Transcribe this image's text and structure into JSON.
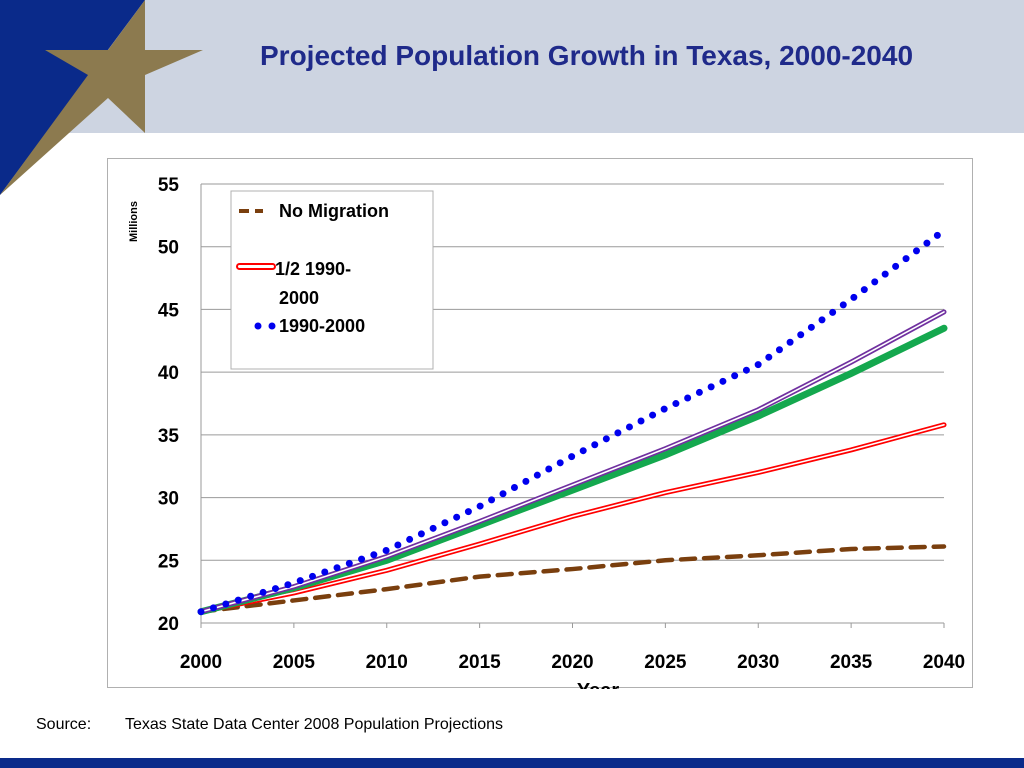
{
  "slide": {
    "title": "Projected Population Growth in Texas, 2000-2040",
    "source_label": "Source:",
    "source_text": "Texas State Data Center 2008 Population Projections",
    "colors": {
      "header_bg": "#cdd4e1",
      "navy": "#0a2a8a",
      "star_gold": "#8c7a4f",
      "title": "#1f2a8a"
    }
  },
  "chart_data": {
    "type": "line",
    "title": "",
    "xlabel": "Year",
    "ylabel": "Millions",
    "x": [
      2000,
      2005,
      2010,
      2015,
      2020,
      2025,
      2030,
      2035,
      2040
    ],
    "xlim": [
      2000,
      2040
    ],
    "ylim": [
      20,
      55
    ],
    "x_ticks": [
      "2000",
      "2005",
      "2010",
      "2015",
      "2020",
      "2025",
      "2030",
      "2035",
      "2040"
    ],
    "y_ticks": [
      "20",
      "25",
      "30",
      "35",
      "40",
      "45",
      "50",
      "55"
    ],
    "grid": "horizontal",
    "legend_placement": "top-left",
    "series": [
      {
        "name": "No Migration",
        "color": "#7a3f0e",
        "style": "dashed",
        "values": [
          20.9,
          21.8,
          22.7,
          23.7,
          24.3,
          25.0,
          25.4,
          25.9,
          26.1
        ]
      },
      {
        "name": "1/2 1990-2000",
        "color": "#ff0000",
        "style": "double",
        "values": [
          20.9,
          22.4,
          24.2,
          26.3,
          28.5,
          30.4,
          32.0,
          33.8,
          35.8
        ]
      },
      {
        "name": "1990-2000",
        "color": "#0000ee",
        "style": "dotted",
        "values": [
          20.9,
          23.2,
          25.8,
          29.3,
          33.3,
          37.1,
          40.6,
          45.8,
          51.3
        ]
      },
      {
        "color": "#14a84e",
        "style": "thick",
        "values": [
          20.9,
          22.8,
          25.0,
          27.8,
          30.6,
          33.4,
          36.5,
          39.9,
          43.5
        ]
      },
      {
        "color": "#7030a0",
        "style": "double",
        "values": [
          20.9,
          22.9,
          25.3,
          28.1,
          31.0,
          33.9,
          37.0,
          40.8,
          44.8
        ]
      }
    ]
  }
}
